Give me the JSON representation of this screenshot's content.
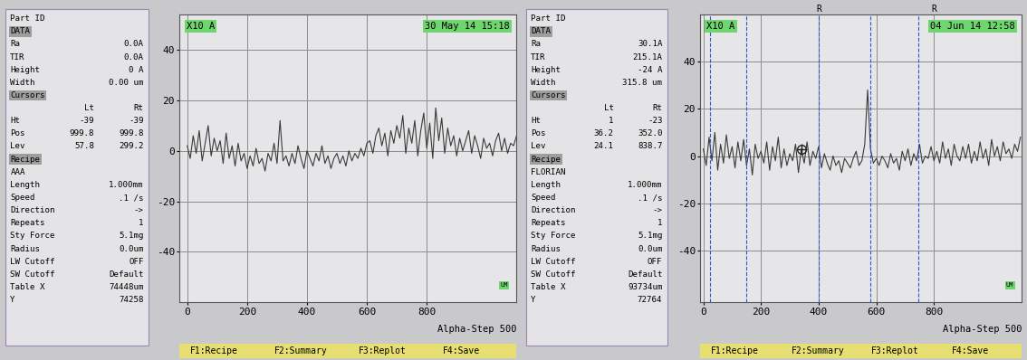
{
  "chart_data": [
    {
      "type": "line",
      "header": "Part ID",
      "scale_label": "X10 A",
      "date": "30 May 14 15:18",
      "unit_tag": "UM",
      "instrument": "Alpha-Step 500",
      "footer": [
        "F1:Recipe",
        "F2:Summary",
        "F3:Replot",
        "F4:Save"
      ],
      "panel": {
        "data": {
          "heading": "DATA",
          "rows": [
            [
              "Ra",
              "0.0A"
            ],
            [
              "TIR",
              "0.0A"
            ],
            [
              "Height",
              "0 A"
            ],
            [
              "Width",
              "0.00 um"
            ]
          ]
        },
        "cursors": {
          "heading": "Cursors",
          "columns": [
            "Lt",
            "Rt"
          ],
          "rows": [
            [
              "Ht",
              "-39",
              "-39"
            ],
            [
              "Pos",
              "999.8",
              "999.8"
            ],
            [
              "Lev",
              "57.8",
              "299.2"
            ]
          ]
        },
        "recipe": {
          "heading": "Recipe",
          "name": "AAA",
          "rows": [
            [
              "Length",
              "1.000mm"
            ],
            [
              "Speed",
              ".1 /s"
            ],
            [
              "Direction",
              "->"
            ],
            [
              "Repeats",
              "1"
            ],
            [
              "Sty Force",
              "5.1mg"
            ],
            [
              "Radius",
              "0.0um"
            ],
            [
              "LW Cutoff",
              "OFF"
            ],
            [
              "SW Cutoff",
              "Default"
            ],
            [
              "Table X",
              "74448um"
            ],
            [
              "Y",
              "74258"
            ]
          ]
        }
      },
      "x": [
        0,
        10,
        20,
        30,
        40,
        50,
        60,
        70,
        80,
        90,
        100,
        110,
        120,
        130,
        140,
        150,
        160,
        170,
        180,
        190,
        200,
        210,
        220,
        230,
        240,
        250,
        260,
        270,
        280,
        290,
        300,
        310,
        320,
        330,
        340,
        350,
        360,
        370,
        380,
        390,
        400,
        410,
        420,
        430,
        440,
        450,
        460,
        470,
        480,
        490,
        500,
        510,
        520,
        530,
        540,
        550,
        560,
        570,
        580,
        590,
        600,
        610,
        620,
        630,
        640,
        650,
        660,
        670,
        680,
        690,
        700,
        710,
        720,
        730,
        740,
        750,
        760,
        770,
        780,
        790,
        800,
        810,
        820,
        830,
        840,
        850,
        860,
        870,
        880,
        890,
        900,
        910,
        920,
        930,
        940,
        950,
        960,
        970,
        980,
        990,
        1000,
        1010,
        1020,
        1030,
        1040,
        1050,
        1060,
        1070,
        1080,
        1090,
        1100
      ],
      "values": [
        2,
        -3,
        6,
        -1,
        8,
        -4,
        3,
        10,
        -2,
        5,
        0,
        4,
        -5,
        7,
        -3,
        2,
        -6,
        3,
        -4,
        -1,
        -7,
        -2,
        -6,
        1,
        -5,
        -3,
        -8,
        -1,
        -4,
        3,
        -5,
        12,
        -4,
        -2,
        -6,
        -1,
        -5,
        2,
        -3,
        -7,
        0,
        -3,
        -6,
        -1,
        -4,
        2,
        -5,
        -2,
        -7,
        -3,
        -1,
        -5,
        -2,
        -6,
        0,
        -4,
        -1,
        -3,
        1,
        -2,
        3,
        4,
        -1,
        6,
        9,
        2,
        7,
        -2,
        8,
        3,
        10,
        5,
        14,
        -1,
        9,
        3,
        12,
        -2,
        8,
        15,
        1,
        11,
        -3,
        17,
        4,
        13,
        -1,
        9,
        2,
        6,
        -2,
        5,
        0,
        4,
        8,
        -1,
        6,
        2,
        -3,
        5,
        1,
        3,
        -2,
        4,
        7,
        0,
        5,
        -1,
        3,
        2,
        6
      ],
      "color": "#3a3a3a",
      "xlim": [
        -25,
        1100
      ],
      "xticks": [
        0,
        200,
        400,
        600,
        800
      ],
      "ylim": [
        -60,
        54
      ],
      "yticks": [
        -40,
        -20,
        0,
        20,
        40
      ],
      "grid": true
    },
    {
      "type": "line",
      "header": "Part ID",
      "scale_label": "X10 A",
      "date": "04 Jun 14 12:58",
      "unit_tag": "UM",
      "instrument": "Alpha-Step 500",
      "footer": [
        "F1:Recipe",
        "F2:Summary",
        "F3:Replot",
        "F4:Save"
      ],
      "panel": {
        "data": {
          "heading": "DATA",
          "rows": [
            [
              "Ra",
              "30.1A"
            ],
            [
              "TIR",
              "215.1A"
            ],
            [
              "Height",
              "-24 A"
            ],
            [
              "Width",
              "315.8 um"
            ]
          ]
        },
        "cursors": {
          "heading": "Cursors",
          "columns": [
            "Lt",
            "Rt"
          ],
          "rows": [
            [
              "Ht",
              "1",
              "-23"
            ],
            [
              "Pos",
              "36.2",
              "352.0"
            ],
            [
              "Lev",
              "24.1",
              "838.7"
            ]
          ]
        },
        "recipe": {
          "heading": "Recipe",
          "name": "FLORIAN",
          "rows": [
            [
              "Length",
              "1.000mm"
            ],
            [
              "Speed",
              ".1 /s"
            ],
            [
              "Direction",
              "->"
            ],
            [
              "Repeats",
              "1"
            ],
            [
              "Sty Force",
              "5.1mg"
            ],
            [
              "Radius",
              "0.0um"
            ],
            [
              "LW Cutoff",
              "OFF"
            ],
            [
              "SW Cutoff",
              "Default"
            ],
            [
              "Table X",
              "93734um"
            ],
            [
              "Y",
              "72764"
            ]
          ]
        }
      },
      "cursor_lines": [
        24,
        150,
        400,
        580,
        745
      ],
      "cursor_marks": [
        {
          "x": 400,
          "label": "R"
        },
        {
          "x": 800,
          "label": "R"
        }
      ],
      "crosshair": {
        "x": 340,
        "y": 3
      },
      "x": [
        0,
        10,
        20,
        30,
        40,
        50,
        60,
        70,
        80,
        90,
        100,
        110,
        120,
        130,
        140,
        150,
        160,
        170,
        180,
        190,
        200,
        210,
        220,
        230,
        240,
        250,
        260,
        270,
        280,
        290,
        300,
        310,
        320,
        330,
        340,
        350,
        360,
        370,
        380,
        390,
        400,
        410,
        420,
        430,
        440,
        450,
        460,
        470,
        480,
        490,
        500,
        510,
        520,
        530,
        540,
        550,
        560,
        570,
        580,
        590,
        600,
        610,
        620,
        630,
        640,
        650,
        660,
        670,
        680,
        690,
        700,
        710,
        720,
        730,
        740,
        750,
        760,
        770,
        780,
        790,
        800,
        810,
        820,
        830,
        840,
        850,
        860,
        870,
        880,
        890,
        900,
        910,
        920,
        930,
        940,
        950,
        960,
        970,
        980,
        990,
        1000,
        1010,
        1020,
        1030,
        1040,
        1050,
        1060,
        1070,
        1080,
        1090,
        1100
      ],
      "values": [
        3,
        -4,
        8,
        -2,
        10,
        -6,
        5,
        -3,
        9,
        -1,
        4,
        -5,
        6,
        -2,
        7,
        -4,
        3,
        -8,
        5,
        -1,
        2,
        -3,
        6,
        -6,
        4,
        -2,
        8,
        -5,
        3,
        -4,
        1,
        -2,
        5,
        -7,
        3,
        -3,
        6,
        -4,
        2,
        -1,
        4,
        -5,
        1,
        -3,
        -6,
        0,
        -4,
        -2,
        -7,
        -1,
        -3,
        -5,
        -1,
        2,
        -4,
        -2,
        5,
        28,
        3,
        -3,
        -1,
        -4,
        0,
        -2,
        -5,
        1,
        -3,
        -1,
        -6,
        2,
        -2,
        3,
        -4,
        1,
        -2,
        5,
        -3,
        0,
        -1,
        4,
        -2,
        2,
        -3,
        6,
        -1,
        3,
        -4,
        5,
        0,
        -2,
        4,
        -1,
        5,
        -3,
        2,
        -2,
        6,
        -1,
        3,
        -4,
        7,
        0,
        4,
        -2,
        6,
        1,
        3,
        -1,
        5,
        2,
        8
      ],
      "color": "#3a3a3a",
      "xlim": [
        -10,
        1105
      ],
      "xticks": [
        0,
        200,
        400,
        600,
        800
      ],
      "ylim": [
        -62,
        60
      ],
      "yticks": [
        -40,
        -20,
        0,
        20,
        40
      ],
      "grid": true
    }
  ]
}
